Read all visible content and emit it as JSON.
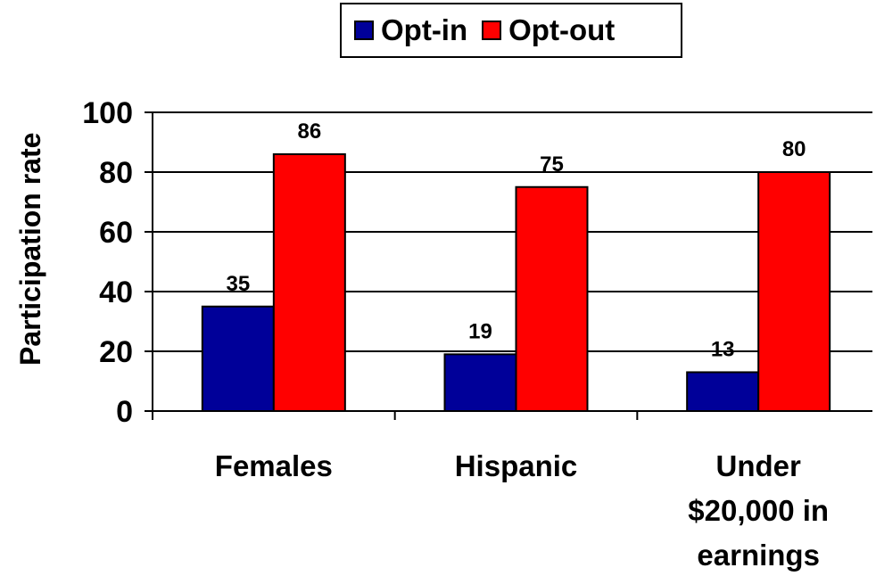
{
  "chart_data": {
    "type": "bar",
    "categories": [
      "Females",
      "Hispanic",
      "Under $20,000 in earnings"
    ],
    "category_lines": [
      [
        "Females"
      ],
      [
        "Hispanic"
      ],
      [
        "Under",
        "$20,000 in",
        "earnings"
      ]
    ],
    "series": [
      {
        "name": "Opt-in",
        "values": [
          35,
          19,
          13
        ],
        "color": "#000099"
      },
      {
        "name": "Opt-out",
        "values": [
          86,
          75,
          80
        ],
        "color": "#ff0000"
      }
    ],
    "title": "",
    "xlabel": "",
    "ylabel": "Participation rate",
    "ylim": [
      0,
      100
    ],
    "yticks": [
      0,
      20,
      40,
      60,
      80,
      100
    ],
    "grid": true,
    "legend_position": "top",
    "data_labels": true
  }
}
